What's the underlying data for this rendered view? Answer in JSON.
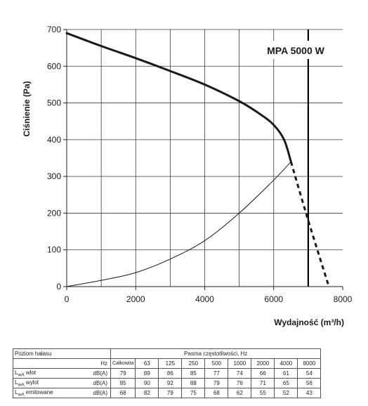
{
  "chart_data": {
    "type": "line",
    "annotation": "MPA 5000 W",
    "ylabel": "Ciśnienie (Pa)",
    "xlabel": "Wydajność (m³/h)",
    "xlim": [
      0,
      8000
    ],
    "ylim": [
      0,
      700
    ],
    "x_ticks": [
      "0",
      "2000",
      "4000",
      "6000",
      "8000"
    ],
    "y_ticks": [
      "0",
      "100",
      "200",
      "300",
      "400",
      "500",
      "600",
      "700"
    ],
    "grid": true,
    "vertical_marker_x": 7000,
    "series": [
      {
        "style": "thick",
        "points": [
          [
            0,
            690
          ],
          [
            1000,
            655
          ],
          [
            2000,
            622
          ],
          [
            3000,
            587
          ],
          [
            4000,
            550
          ],
          [
            5000,
            505
          ],
          [
            5600,
            470
          ],
          [
            6000,
            440
          ],
          [
            6300,
            400
          ],
          [
            6500,
            340
          ]
        ]
      },
      {
        "style": "thin",
        "points": [
          [
            0,
            0
          ],
          [
            1000,
            17
          ],
          [
            2000,
            38
          ],
          [
            3000,
            75
          ],
          [
            4000,
            125
          ],
          [
            5000,
            200
          ],
          [
            6000,
            290
          ],
          [
            6500,
            340
          ]
        ]
      },
      {
        "style": "dashed",
        "points": [
          [
            6500,
            340
          ],
          [
            7000,
            180
          ],
          [
            7600,
            0
          ]
        ]
      }
    ]
  },
  "table": {
    "title": "Poziom hałasu",
    "hz_label": "Hz",
    "bands_header": "Pasma częstotliwości, Hz",
    "columns": [
      "Całkowita",
      "63",
      "125",
      "250",
      "500",
      "1000",
      "2000",
      "4000",
      "8000"
    ],
    "rows": [
      {
        "label_main": "L",
        "label_sub": "wA",
        "label_rest": " wlot",
        "unit": "dB(A)",
        "values": [
          "79",
          "89",
          "86",
          "85",
          "77",
          "74",
          "66",
          "61",
          "54"
        ]
      },
      {
        "label_main": "L",
        "label_sub": "wA",
        "label_rest": " wylot",
        "unit": "dB(A)",
        "values": [
          "85",
          "90",
          "92",
          "88",
          "79",
          "76",
          "71",
          "65",
          "56"
        ]
      },
      {
        "label_main": "L",
        "label_sub": "wA",
        "label_rest": " emitowane",
        "unit": "dB(A)",
        "values": [
          "68",
          "82",
          "79",
          "75",
          "68",
          "62",
          "55",
          "52",
          "43"
        ]
      }
    ]
  }
}
